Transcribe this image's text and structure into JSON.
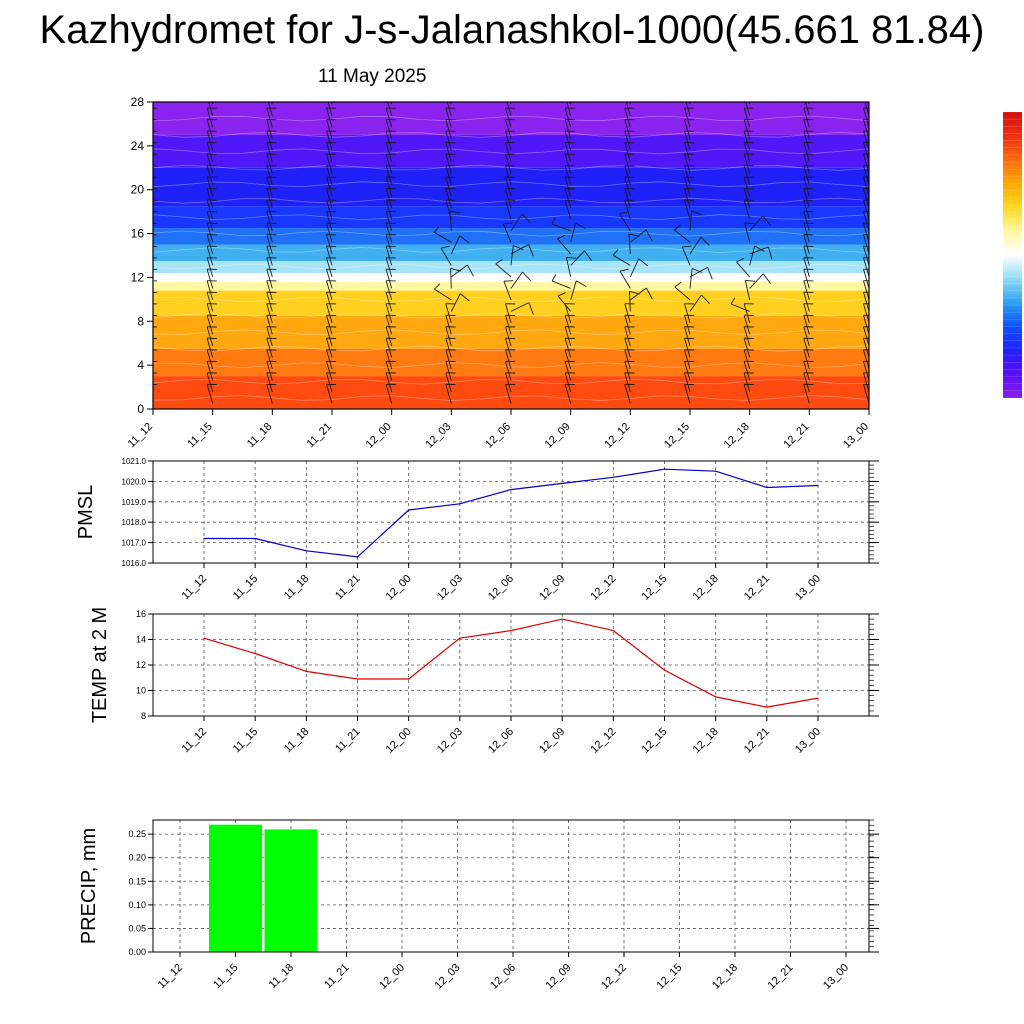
{
  "page": {
    "title": "Kazhydromet for J-s-Jalanashkol-1000(45.661 81.84)",
    "subtitle": "11 May 2025"
  },
  "colors": {
    "pmsl_line": "#0000cc",
    "temp_line": "#dd0000",
    "precip_bar": "#00ff00",
    "colorbar": [
      "#8a1cf0",
      "#5a10f5",
      "#2020ff",
      "#1050ff",
      "#2aa0f0",
      "#90dcf8",
      "#ffffff",
      "#fff8a0",
      "#ffd820",
      "#ffa800",
      "#ff6a10",
      "#f03010",
      "#d21010"
    ]
  },
  "chart_data": [
    {
      "type": "heatmap",
      "name": "time-height section with wind barbs",
      "x_ticks": [
        "11_12",
        "11_15",
        "11_18",
        "11_21",
        "12_00",
        "12_03",
        "12_06",
        "12_09",
        "12_12",
        "12_15",
        "12_18",
        "12_21",
        "13_00"
      ],
      "y_ticks": [
        "0",
        "4",
        "8",
        "12",
        "16",
        "20",
        "24",
        "28"
      ],
      "ylim": [
        0,
        28
      ],
      "color_bands": [
        {
          "from": 0,
          "to": 3,
          "color": "#ff4a10"
        },
        {
          "from": 3,
          "to": 5.5,
          "color": "#ff7a10"
        },
        {
          "from": 5.5,
          "to": 8.5,
          "color": "#ffa810"
        },
        {
          "from": 8.5,
          "to": 10.8,
          "color": "#ffd020"
        },
        {
          "from": 10.8,
          "to": 11.6,
          "color": "#fff8a0"
        },
        {
          "from": 11.6,
          "to": 12.4,
          "color": "#ffffff"
        },
        {
          "from": 12.4,
          "to": 13.5,
          "color": "#a8e4f8"
        },
        {
          "from": 13.5,
          "to": 15,
          "color": "#40b0f0"
        },
        {
          "from": 15,
          "to": 16.5,
          "color": "#2070f8"
        },
        {
          "from": 16.5,
          "to": 18.5,
          "color": "#1838ff"
        },
        {
          "from": 18.5,
          "to": 22,
          "color": "#2020f8"
        },
        {
          "from": 22,
          "to": 25,
          "color": "#5018f8"
        },
        {
          "from": 25,
          "to": 28,
          "color": "#8a22f0"
        }
      ]
    },
    {
      "type": "line",
      "ylabel": "PMSL",
      "categories": [
        "11_12",
        "11_15",
        "11_18",
        "11_21",
        "12_00",
        "12_03",
        "12_06",
        "12_09",
        "12_12",
        "12_15",
        "12_18",
        "12_21",
        "13_00"
      ],
      "y_ticks": [
        "1016.0",
        "1017.0",
        "1018.0",
        "1019.0",
        "1020.0",
        "1021.0"
      ],
      "ylim": [
        1016.0,
        1021.0
      ],
      "values": [
        1017.2,
        1017.2,
        1016.6,
        1016.3,
        1018.6,
        1018.9,
        1019.6,
        1019.9,
        1020.2,
        1020.6,
        1020.5,
        1019.7,
        1019.8
      ],
      "grid": true
    },
    {
      "type": "line",
      "ylabel": "TEMP at 2 M",
      "categories": [
        "11_12",
        "11_15",
        "11_18",
        "11_21",
        "12_00",
        "12_03",
        "12_06",
        "12_09",
        "12_12",
        "12_15",
        "12_18",
        "12_21",
        "13_00"
      ],
      "y_ticks": [
        "8",
        "10",
        "12",
        "14",
        "16"
      ],
      "ylim": [
        8,
        16
      ],
      "values": [
        14.1,
        12.9,
        11.5,
        10.9,
        10.9,
        14.1,
        14.7,
        15.6,
        14.7,
        11.6,
        9.5,
        8.7,
        9.4
      ],
      "grid": true
    },
    {
      "type": "bar",
      "ylabel": "PRECIP, mm",
      "categories": [
        "11_12",
        "11_15",
        "11_18",
        "11_21",
        "12_00",
        "12_03",
        "12_06",
        "12_09",
        "12_12",
        "12_15",
        "12_18",
        "12_21",
        "13_00"
      ],
      "y_ticks": [
        "0.00",
        "0.05",
        "0.10",
        "0.15",
        "0.20",
        "0.25"
      ],
      "ylim": [
        0,
        0.28
      ],
      "values": [
        0,
        0.27,
        0.26,
        0,
        0,
        0,
        0,
        0,
        0,
        0,
        0,
        0,
        0
      ],
      "grid": true
    }
  ]
}
